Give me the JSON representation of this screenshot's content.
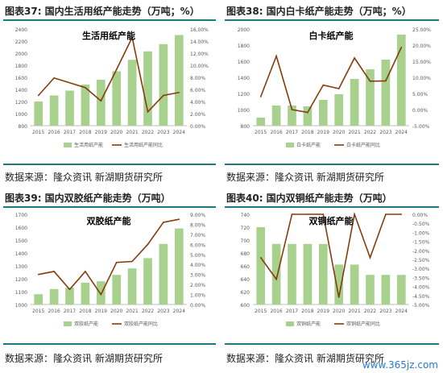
{
  "headers": {
    "c37": "图表37: 国内生活用纸产能走势（万吨；%）",
    "c38": "图表38: 国内白卡纸产能走势（万吨；%）",
    "c39": "图表39: 国内双胶纸产能走势（万吨）",
    "c40": "图表40: 国内双铜纸产能走势（万吨）"
  },
  "sources": {
    "s1": "数据来源：隆众资讯 新湖期货研究所",
    "s2": "数据来源：隆众资讯 新湖期货研究所",
    "s3": "数据来源：隆众资讯 新湖期货研究所",
    "s4": "数据来源：隆众资讯 新湖期货研究所"
  },
  "watermark": "www.365jz.com",
  "colors": {
    "bar": "#a9d18e",
    "line": "#843c0c",
    "rule": "#1e7a80"
  },
  "chart_data": [
    {
      "type": "bar",
      "title": "生活用纸产能",
      "categories": [
        "2015",
        "2016",
        "2017",
        "2018",
        "2019",
        "2020",
        "2021",
        "2022",
        "2023",
        "2024"
      ],
      "series": [
        {
          "name": "生活用纸产能",
          "type": "bar",
          "axis": "left",
          "values": [
            1200,
            1300,
            1380,
            1480,
            1560,
            1700,
            1890,
            2030,
            2150,
            2300
          ]
        },
        {
          "name": "生活用纸产能同比",
          "type": "line",
          "axis": "right",
          "values": [
            5.0,
            7.9,
            7.1,
            6.3,
            4.1,
            9.3,
            14.6,
            2.3,
            5.0,
            5.5
          ]
        }
      ],
      "y_left": {
        "min": 800,
        "max": 2400,
        "ticks": [
          800,
          1000,
          1200,
          1400,
          1600,
          1800,
          2000,
          2200,
          2400
        ]
      },
      "y_right": {
        "min": 0,
        "max": 16,
        "step": 2,
        "unit": "%",
        "decimals": 2
      }
    },
    {
      "type": "bar",
      "title": "白卡纸产能",
      "categories": [
        "2015",
        "2016",
        "2017",
        "2018",
        "2019",
        "2020",
        "2021",
        "2022",
        "2023",
        "2024"
      ],
      "series": [
        {
          "name": "白卡纸产能",
          "type": "bar",
          "axis": "left",
          "values": [
            900,
            1050,
            1050,
            1040,
            1120,
            1190,
            1380,
            1500,
            1620,
            1930
          ]
        },
        {
          "name": "白卡纸产能同比",
          "type": "line",
          "axis": "right",
          "values": [
            4.0,
            16.6,
            0.0,
            -0.9,
            7.6,
            6.5,
            16.0,
            8.8,
            8.9,
            19.3
          ]
        }
      ],
      "y_left": {
        "min": 800,
        "max": 2000,
        "ticks": [
          800,
          1000,
          1200,
          1400,
          1600,
          1800,
          2000
        ]
      },
      "y_right": {
        "min": -5,
        "max": 25,
        "step": 5,
        "unit": "%",
        "decimals": 2
      }
    },
    {
      "type": "bar",
      "title": "双胶纸产能",
      "categories": [
        "2015",
        "2016",
        "2017",
        "2018",
        "2019",
        "2020",
        "2021",
        "2022",
        "2023",
        "2024"
      ],
      "series": [
        {
          "name": "双胶纸产能",
          "type": "bar",
          "axis": "left",
          "values": [
            1080,
            1120,
            1130,
            1170,
            1180,
            1230,
            1280,
            1360,
            1470,
            1590
          ]
        },
        {
          "name": "双胶纸产能同比",
          "type": "line",
          "axis": "right",
          "values": [
            3.0,
            3.3,
            1.5,
            3.3,
            1.0,
            4.2,
            4.3,
            6.0,
            8.2,
            8.5
          ]
        }
      ],
      "y_left": {
        "min": 1000,
        "max": 1700,
        "ticks": [
          1000,
          1100,
          1200,
          1300,
          1400,
          1500,
          1600,
          1700
        ]
      },
      "y_right": {
        "min": 0,
        "max": 9,
        "step": 1,
        "unit": "%",
        "decimals": 2
      }
    },
    {
      "type": "bar",
      "title": "双铜纸产能",
      "categories": [
        "2015",
        "2016",
        "2017",
        "2018",
        "2019",
        "2020",
        "2021",
        "2022",
        "2023",
        "2024"
      ],
      "series": [
        {
          "name": "双铜纸产能",
          "type": "bar",
          "axis": "left",
          "values": [
            720,
            694,
            694,
            694,
            694,
            662,
            662,
            646,
            646,
            646
          ]
        },
        {
          "name": "双铜纸产能同比",
          "type": "line",
          "axis": "right",
          "values": [
            -2.4,
            -3.6,
            0.0,
            0.0,
            0.0,
            -4.6,
            0.0,
            -2.4,
            0.0,
            0.0
          ]
        }
      ],
      "y_left": {
        "min": 600,
        "max": 740,
        "ticks": [
          600,
          620,
          640,
          660,
          680,
          700,
          720,
          740
        ]
      },
      "y_right": {
        "min": -5,
        "max": 0,
        "step": 0.5,
        "unit": "%",
        "decimals": 2
      }
    }
  ]
}
